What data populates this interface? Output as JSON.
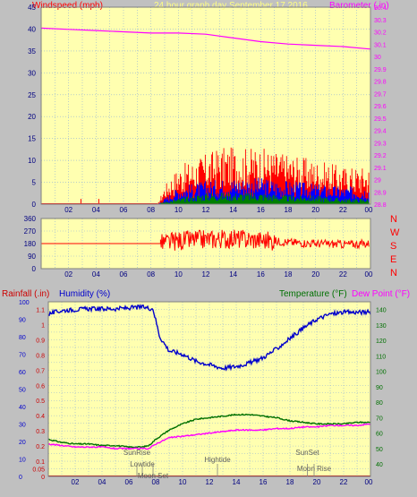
{
  "header": {
    "left_title": "Windspeed (mph)",
    "center_title": "24 hour graph day   September 17 2016",
    "right_title": "Barometer (.in)"
  },
  "colors": {
    "plot_bg": "#ffffb0",
    "page_bg": "#c0c0c0",
    "grid": "#8fb0d8",
    "wind_gust": "#ff0000",
    "wind_avg": "#0000ff",
    "wind_low": "#008000",
    "barometer": "#ff00ff",
    "direction": "#ff0000",
    "humidity": "#0000cc",
    "temperature": "#007000",
    "dewpoint": "#ff00ff",
    "rain": "#cc0000",
    "annot": "#808080"
  },
  "chart_data": [
    {
      "type": "line",
      "name": "wind-barometer",
      "x_ticks": [
        "02",
        "04",
        "06",
        "08",
        "10",
        "12",
        "14",
        "16",
        "18",
        "20",
        "22",
        "00"
      ],
      "left_axis": {
        "label": "Windspeed (mph)",
        "ylim": [
          0,
          45
        ],
        "ticks": [
          0,
          5,
          10,
          15,
          20,
          25,
          30,
          35,
          40,
          45
        ]
      },
      "right_axis": {
        "label": "Barometer (.in)",
        "ylim": [
          28.8,
          30.4
        ],
        "ticks": [
          "28.8",
          "28.9",
          "29",
          "29.1",
          "29.2",
          "29.3",
          "29.4",
          "29.5",
          "29.6",
          "29.7",
          "29.8",
          "29.9",
          "30",
          "30.1",
          "30.2",
          "30.3",
          "30.4"
        ]
      },
      "barometer": {
        "x": [
          0,
          2,
          4,
          6,
          8,
          10,
          12,
          14,
          16,
          18,
          20,
          22,
          24
        ],
        "y": [
          30.23,
          30.22,
          30.21,
          30.2,
          30.19,
          30.19,
          30.18,
          30.15,
          30.12,
          30.1,
          30.09,
          30.08,
          30.06
        ]
      },
      "wind_gust_envelope": {
        "x": [
          0,
          8.5,
          9,
          10,
          12,
          13,
          14,
          16,
          18,
          20,
          22,
          24
        ],
        "y": [
          0,
          0,
          3,
          6,
          8,
          9,
          9,
          9,
          8,
          7,
          6,
          6
        ]
      },
      "wind_avg_envelope": {
        "x": [
          0,
          8.5,
          9,
          10,
          12,
          14,
          16,
          18,
          20,
          22,
          24
        ],
        "y": [
          0,
          0,
          1,
          3,
          4,
          4.5,
          4.5,
          4,
          3.5,
          3,
          3
        ]
      },
      "wind_low_envelope": {
        "x": [
          0,
          8.5,
          9,
          10,
          12,
          14,
          16,
          18,
          20,
          22,
          24
        ],
        "y": [
          0,
          0,
          0.5,
          1,
          2,
          2,
          2,
          1.5,
          1.5,
          1,
          1
        ]
      }
    },
    {
      "type": "line",
      "name": "wind-direction",
      "x_ticks": [
        "02",
        "04",
        "06",
        "08",
        "10",
        "12",
        "14",
        "16",
        "18",
        "20",
        "22",
        "00"
      ],
      "left_axis": {
        "ylim": [
          0,
          360
        ],
        "ticks": [
          0,
          90,
          180,
          270,
          360
        ]
      },
      "right_labels": [
        "N",
        "W",
        "S",
        "E",
        "N"
      ],
      "direction": {
        "x": [
          0,
          8.7,
          9,
          10,
          12,
          14,
          16,
          18,
          20,
          22,
          24
        ],
        "y": [
          180,
          180,
          185,
          200,
          210,
          215,
          205,
          190,
          180,
          175,
          180
        ]
      }
    },
    {
      "type": "line",
      "name": "rain-humidity-temperature",
      "x_ticks": [
        "02",
        "04",
        "06",
        "08",
        "10",
        "12",
        "14",
        "16",
        "18",
        "20",
        "22",
        "00"
      ],
      "left_axis_outer": {
        "label": "Rainfall (.in)",
        "ylim": [
          0,
          1.15
        ],
        "ticks": [
          "0",
          "0.05",
          "0.1",
          "0.15",
          "0.2",
          "0.25",
          "0.3",
          "0.35",
          "0.4",
          "0.45",
          "0.5",
          "0.55",
          "0.6",
          "0.65",
          "0.7",
          "0.75",
          "0.8",
          "0.85",
          "0.9",
          "0.95",
          "1",
          "1.05",
          "1.1"
        ]
      },
      "left_axis_inner": {
        "label": "Humidity (%)",
        "ylim": [
          0,
          100
        ],
        "ticks": [
          0,
          10,
          20,
          30,
          40,
          50,
          60,
          70,
          80,
          90,
          100
        ]
      },
      "right_axis": {
        "label": "Temperature (°F)",
        "label2": "Dew Point (°F)",
        "ylim": [
          32,
          145
        ],
        "ticks": [
          40,
          50,
          60,
          70,
          80,
          90,
          100,
          110,
          120,
          130,
          140
        ]
      },
      "humidity": {
        "x": [
          0,
          1,
          3,
          5,
          7,
          7.8,
          8.3,
          9,
          10,
          11,
          12,
          13,
          14,
          15,
          16,
          17,
          18,
          19,
          20,
          21,
          22,
          23,
          24
        ],
        "y": [
          93,
          95,
          96,
          96,
          97,
          96,
          80,
          72,
          70,
          66,
          64,
          62,
          63,
          65,
          68,
          73,
          79,
          85,
          90,
          93,
          94,
          94,
          94
        ]
      },
      "temperature": {
        "x": [
          0,
          1,
          2,
          3,
          4,
          5,
          6,
          7,
          7.5,
          8,
          9,
          10,
          11,
          12,
          13,
          14,
          15,
          16,
          17,
          18,
          19,
          20,
          21,
          22,
          23,
          24
        ],
        "y": [
          56,
          54,
          53,
          53,
          52,
          52,
          51,
          51,
          52,
          56,
          62,
          66,
          69,
          70,
          71,
          72,
          72,
          71,
          70,
          68,
          67,
          66,
          66,
          66,
          67,
          67
        ]
      },
      "dewpoint": {
        "x": [
          0,
          1,
          2,
          3,
          4,
          5,
          6,
          7,
          7.5,
          8,
          9,
          10,
          11,
          12,
          13,
          14,
          15,
          16,
          17,
          18,
          19,
          20,
          21,
          22,
          23,
          24
        ],
        "y": [
          53,
          52,
          51,
          51,
          51,
          50,
          50,
          50,
          50,
          53,
          57,
          58,
          59,
          60,
          61,
          62,
          62,
          62,
          63,
          63,
          64,
          64,
          65,
          65,
          65,
          66
        ]
      },
      "annotations": [
        {
          "text": "SunRise",
          "hour": 6.6
        },
        {
          "text": "Lowtide",
          "hour": 7.0
        },
        {
          "text": "Moon Set",
          "hour": 7.8
        },
        {
          "text": "Hightide",
          "hour": 12.6
        },
        {
          "text": "SunSet",
          "hour": 19.3
        },
        {
          "text": "Moon Rise",
          "hour": 19.8
        }
      ]
    }
  ]
}
